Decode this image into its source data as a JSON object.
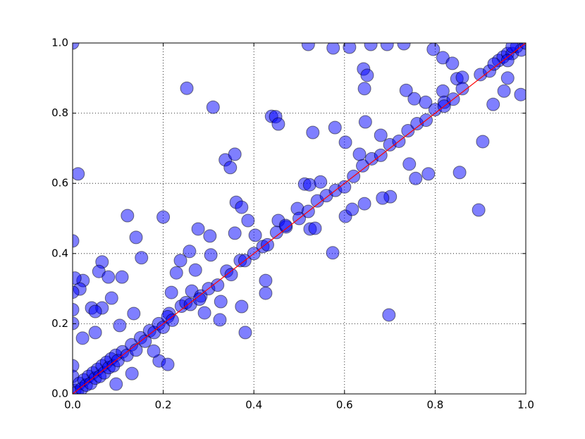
{
  "chart_data": {
    "type": "scatter",
    "xlim": [
      0,
      1
    ],
    "ylim": [
      0,
      1
    ],
    "xticks": [
      {
        "value": 0,
        "label": "0.0"
      },
      0.2,
      0.4,
      0.6,
      0.8,
      {
        "value": 1,
        "label": "1.0"
      }
    ],
    "yticks": [
      {
        "value": 0,
        "label": "0.0"
      },
      0.2,
      0.4,
      0.6,
      0.8,
      {
        "value": 1,
        "label": "1.0"
      }
    ],
    "grid": true,
    "series": [
      {
        "type": "scatter",
        "color": "#0000ff",
        "x": [
          0,
          0.252,
          0.31,
          0.439,
          0.448,
          0.454,
          0.52,
          0.575,
          0.611,
          0.658,
          0.694,
          0.731,
          0.796,
          0.012,
          0,
          0.121,
          0.2,
          0.14,
          0.152,
          0.337,
          0.358,
          0.348,
          0.361,
          0.373,
          0.277,
          0.303,
          0.258,
          0.271,
          0.305,
          0.358,
          0.387,
          0.403,
          0.426,
          0.426,
          0.373,
          0.381,
          0.327,
          0.325,
          0.698,
          0.701,
          0.684,
          0.574,
          0.854,
          0.905,
          0.896,
          0.989,
          0.928,
          0.952,
          0.96,
          0.642,
          0.65,
          0.644,
          0.817,
          0.838,
          0.848,
          0.86,
          0.736,
          0.754,
          0.779,
          0.785,
          0.757,
          0.743,
          0.817,
          0.82,
          0.53,
          0.579,
          0.646,
          0.602,
          0.633,
          0.68,
          0.524,
          0.535,
          0.602,
          0.617,
          0.644,
          0.496,
          0.512,
          0.523,
          0.547,
          0.454,
          0.471,
          0.022,
          0,
          0.023,
          0.016,
          0.065,
          0.058,
          0.079,
          0.109,
          0.042,
          0.065,
          0.05,
          0.086,
          0.104,
          0.05,
          0.135,
          0.131,
          0.096,
          0.191,
          0.21,
          0.179,
          0.213,
          0.218,
          0.229,
          0.238,
          0.263,
          0.283,
          0.291,
          0,
          0,
          0,
          0,
          0.005,
          0.005,
          0.01,
          0.015,
          0.02,
          0.025,
          0.03,
          0.035,
          0.04,
          0.045,
          0.05,
          0.055,
          0.06,
          0.065,
          0.07,
          0.075,
          0.08,
          0.085,
          0.09,
          0.095,
          0.1,
          0.11,
          0.12,
          0.13,
          0.14,
          0.15,
          0.16,
          0.17,
          0.18,
          0.19,
          0.2,
          0.21,
          0.22,
          0.24,
          0.25,
          0.26,
          0.28,
          0.3,
          0.32,
          0.34,
          0.35,
          0.37,
          0.38,
          0.4,
          0.42,
          0.43,
          0.45,
          0.47,
          0.5,
          0.52,
          0.54,
          0.56,
          0.58,
          0.6,
          0.62,
          0.64,
          0.66,
          0.68,
          0.7,
          0.72,
          0.74,
          0.76,
          0.78,
          0.8,
          0.82,
          0.84,
          0.86,
          0.9,
          0.92,
          0.94,
          0.95,
          0.96,
          0.97,
          0.98,
          0.99,
          1,
          0.96,
          0.97,
          0.93
        ],
        "y": [
          1,
          0.871,
          0.817,
          0.791,
          0.79,
          0.769,
          0.996,
          0.986,
          0.988,
          0.996,
          0.996,
          0.998,
          0.982,
          0.627,
          0.436,
          0.508,
          0.504,
          0.446,
          0.388,
          0.667,
          0.683,
          0.645,
          0.546,
          0.532,
          0.47,
          0.45,
          0.406,
          0.353,
          0.396,
          0.458,
          0.494,
          0.452,
          0.323,
          0.287,
          0.249,
          0.175,
          0.263,
          0.211,
          0.225,
          0.562,
          0.558,
          0.402,
          0.631,
          0.719,
          0.524,
          0.853,
          0.825,
          0.863,
          0.9,
          0.926,
          0.908,
          0.87,
          0.958,
          0.942,
          0.898,
          0.902,
          0.865,
          0.841,
          0.831,
          0.627,
          0.614,
          0.655,
          0.863,
          0.831,
          0.745,
          0.759,
          0.775,
          0.717,
          0.683,
          0.737,
          0.47,
          0.472,
          0.506,
          0.526,
          0.542,
          0.528,
          0.598,
          0.596,
          0.604,
          0.494,
          0.476,
          0.159,
          0.201,
          0.323,
          0.299,
          0.376,
          0.349,
          0.333,
          0.333,
          0.245,
          0.245,
          0.235,
          0.273,
          0.195,
          0.175,
          0.229,
          0.058,
          0.028,
          0.094,
          0.084,
          0.122,
          0.229,
          0.289,
          0.345,
          0.38,
          0.293,
          0.279,
          0.231,
          0.08,
          0.05,
          0.29,
          0.24,
          0.33,
          0.01,
          0.005,
          0.03,
          0.015,
          0.04,
          0.025,
          0.05,
          0.03,
          0.06,
          0.045,
          0.07,
          0.05,
          0.08,
          0.06,
          0.09,
          0.075,
          0.1,
          0.08,
          0.11,
          0.095,
          0.12,
          0.11,
          0.14,
          0.125,
          0.16,
          0.15,
          0.18,
          0.175,
          0.2,
          0.19,
          0.22,
          0.21,
          0.25,
          0.26,
          0.255,
          0.27,
          0.3,
          0.31,
          0.35,
          0.34,
          0.38,
          0.38,
          0.4,
          0.42,
          0.425,
          0.46,
          0.48,
          0.5,
          0.52,
          0.55,
          0.565,
          0.58,
          0.59,
          0.62,
          0.65,
          0.67,
          0.68,
          0.71,
          0.72,
          0.75,
          0.77,
          0.78,
          0.81,
          0.82,
          0.84,
          0.87,
          0.91,
          0.92,
          0.95,
          0.96,
          0.97,
          0.97,
          0.99,
          0.98,
          1,
          0.95,
          0.99,
          0.94
        ]
      },
      {
        "type": "line",
        "color": "#ff0000",
        "x": [
          0,
          1
        ],
        "y": [
          0,
          1
        ]
      }
    ]
  }
}
